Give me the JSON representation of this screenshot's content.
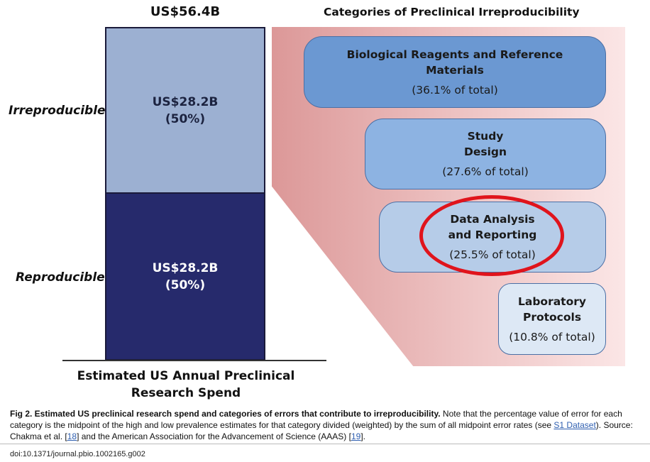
{
  "chart_data": [
    {
      "type": "bar",
      "title": "US$56.4B",
      "xlabel": "Estimated US Annual Preclinical Research Spend",
      "categories": [
        "Estimated US Annual Preclinical Research Spend"
      ],
      "total_label": "US$56.4B",
      "series": [
        {
          "name": "Reproducible",
          "values": [
            28.2
          ],
          "label_line1": "US$28.2B",
          "label_line2": "(50%)",
          "color": "#262a6c"
        },
        {
          "name": "Irreproducible",
          "values": [
            28.2
          ],
          "label_line1": "US$28.2B",
          "label_line2": "(50%)",
          "color": "#9cb0d2"
        }
      ],
      "stacked": true,
      "ylim": [
        0,
        56.4
      ]
    },
    {
      "type": "table",
      "title": "Categories of Preclinical Irreproducibility",
      "rows": [
        {
          "name": "Biological Reagents and Reference\nMaterials",
          "value": 36.1,
          "pct_label": "(36.1% of total)",
          "color": "#6b98d2"
        },
        {
          "name": "Study\nDesign",
          "value": 27.6,
          "pct_label": "(27.6% of total)",
          "color": "#8db3e2"
        },
        {
          "name": "Data Analysis\nand Reporting",
          "value": 25.5,
          "pct_label": "(25.5% of total)",
          "color": "#b6cce8",
          "highlighted": true
        },
        {
          "name": "Laboratory\nProtocols",
          "value": 10.8,
          "pct_label": "(10.8% of total)",
          "color": "#dde8f5"
        }
      ]
    }
  ],
  "caption": {
    "fig_label": "Fig 2. Estimated US preclinical research spend and categories of errors that contribute to irreproducibility.",
    "text1": " Note that the percentage value of error for each category is the midpoint of the high and low prevalence estimates for that category divided (weighted) by the sum of all midpoint error rates (see ",
    "link_s1": "S1 Dataset",
    "text2": "). Source: Chakma et al. [",
    "link_18": "18",
    "text3": "] and the American Association for the Advancement of Science (AAAS) [",
    "link_19": "19",
    "text4": "]."
  },
  "doi": "doi:10.1371/journal.pbio.1002165.g002",
  "colors": {
    "highlight_ring": "#e0141c",
    "panel_gradient_start": "#dc9898"
  }
}
